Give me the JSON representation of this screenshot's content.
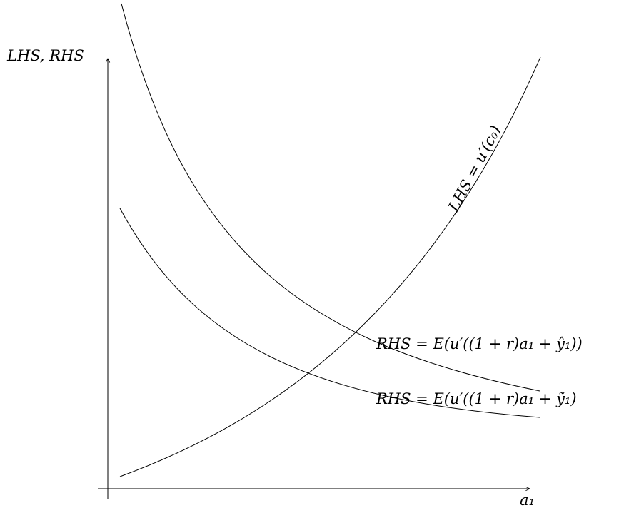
{
  "axes": {
    "y_label": "LHS, RHS",
    "x_label": "a₁"
  },
  "curves": [
    {
      "name": "lhs-curve",
      "label": "LHS = u′(c₀)"
    },
    {
      "name": "rhs-hat-curve",
      "label": "RHS = E(u′((1 + r)a₁ + ŷ₁))"
    },
    {
      "name": "rhs-tilde-curve",
      "label": "RHS = E(u′((1 + r)a₁ + ỹ₁)"
    }
  ]
}
